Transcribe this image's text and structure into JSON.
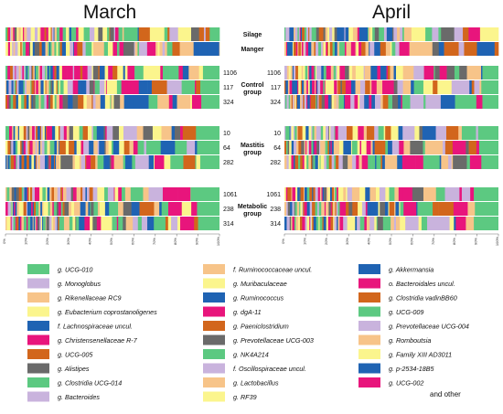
{
  "chart_data": {
    "type": "stacked-bar",
    "orientation": "horizontal",
    "panels": [
      {
        "title": "March",
        "side": "left"
      },
      {
        "title": "April",
        "side": "right"
      }
    ],
    "axis": {
      "min": 0,
      "max": 100,
      "ticks": [
        "0%",
        "10%",
        "20%",
        "30%",
        "40%",
        "50%",
        "60%",
        "70%",
        "80%",
        "90%",
        "100%"
      ]
    },
    "groups": [
      {
        "label": "",
        "rows": [
          {
            "label": "Silage",
            "left": "",
            "right": ""
          },
          {
            "label": "Manger",
            "left": "",
            "right": ""
          }
        ]
      },
      {
        "label": "Control group",
        "rows": [
          {
            "label": "",
            "left": "1106",
            "right": "1106"
          },
          {
            "label": "",
            "left": "117",
            "right": "117"
          },
          {
            "label": "",
            "left": "324",
            "right": "324"
          }
        ]
      },
      {
        "label": "Mastitis group",
        "rows": [
          {
            "label": "",
            "left": "10",
            "right": "10"
          },
          {
            "label": "",
            "left": "64",
            "right": "64"
          },
          {
            "label": "",
            "left": "282",
            "right": "282"
          }
        ]
      },
      {
        "label": "Metabolic group",
        "rows": [
          {
            "label": "",
            "left": "1061",
            "right": "1061"
          },
          {
            "label": "",
            "left": "238",
            "right": "238"
          },
          {
            "label": "",
            "left": "314",
            "right": "314"
          }
        ]
      }
    ],
    "taxa": [
      {
        "name": "g. UCG-010",
        "color": "#5cc981"
      },
      {
        "name": "g. Monoglobus",
        "color": "#c9b3dd"
      },
      {
        "name": "g. Rikenellaceae RC9",
        "color": "#f7c489"
      },
      {
        "name": "g. Eubacterium coprostanoligenes",
        "color": "#fbf58d"
      },
      {
        "name": "f. Lachnospiraceae uncul.",
        "color": "#1f63b3"
      },
      {
        "name": "g. Christensenellaceae R-7",
        "color": "#e8157c"
      },
      {
        "name": "g. UCG-005",
        "color": "#d2661c"
      },
      {
        "name": "g. Alistipes",
        "color": "#6a6a6a"
      },
      {
        "name": "g. Clostridia UCG-014",
        "color": "#5cc981"
      },
      {
        "name": "g. Bacteroides",
        "color": "#c9b3dd"
      },
      {
        "name": "f. Ruminococcaceae uncul.",
        "color": "#f7c489"
      },
      {
        "name": "g. Muribaculaceae",
        "color": "#fbf58d"
      },
      {
        "name": "g. Ruminococcus",
        "color": "#1f63b3"
      },
      {
        "name": "g. dgA-11",
        "color": "#e8157c"
      },
      {
        "name": "g. Paeniclostridium",
        "color": "#d2661c"
      },
      {
        "name": "g. Prevotellaceae UCG-003",
        "color": "#6a6a6a"
      },
      {
        "name": "g. NK4A214",
        "color": "#5cc981"
      },
      {
        "name": "f. Oscillospiraceae uncul.",
        "color": "#c9b3dd"
      },
      {
        "name": "g. Lactobacillus",
        "color": "#f7c489"
      },
      {
        "name": "g. RF39",
        "color": "#fbf58d"
      },
      {
        "name": "g. Akkermansia",
        "color": "#1f63b3"
      },
      {
        "name": "o. Bacteroidales uncul.",
        "color": "#e8157c"
      },
      {
        "name": "g. Clostridia vadinBB60",
        "color": "#d2661c"
      },
      {
        "name": "g. UCG-009",
        "color": "#5cc981"
      },
      {
        "name": "g. Prevotellaceae UCG-004",
        "color": "#c9b3dd"
      },
      {
        "name": "g. Romboutsia",
        "color": "#f7c489"
      },
      {
        "name": "g. Family XIII AD3011",
        "color": "#fbf58d"
      },
      {
        "name": "g. p-2534-18B5",
        "color": "#1f63b3"
      },
      {
        "name": "g. UCG-002",
        "color": "#e8157c"
      }
    ],
    "other_label": "and other",
    "right_block_percent": {
      "Silage": {
        "left": 0,
        "right": 0
      },
      "Manger": {
        "left": 0,
        "right": 0
      },
      "1106": {
        "left": 7.5,
        "right": 7.5
      },
      "117": {
        "left": 8.5,
        "right": 8.0
      },
      "324": {
        "left": 8.5,
        "right": 7.5
      },
      "10": {
        "left": 11.0,
        "right": 9.5
      },
      "64": {
        "left": 10.5,
        "right": 9.0
      },
      "282": {
        "left": 9.0,
        "right": 8.0
      },
      "1061": {
        "left": 13.5,
        "right": 11.5
      },
      "238": {
        "left": 10.5,
        "right": 11.0
      },
      "314": {
        "left": 10.0,
        "right": 11.5
      }
    }
  }
}
